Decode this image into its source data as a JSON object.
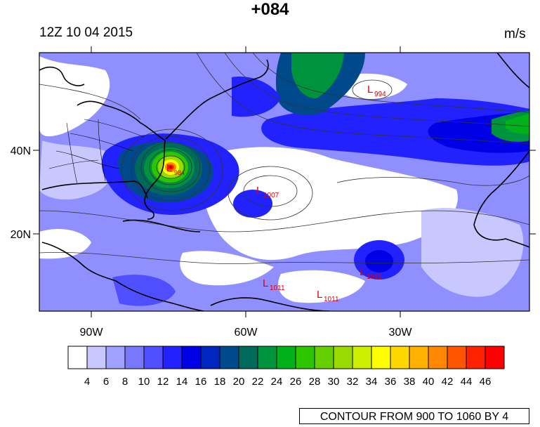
{
  "title": "+084",
  "valid_time": "12Z 10 04 2015",
  "units": "m/s",
  "footer": "CONTOUR FROM 900 TO 1060 BY 4",
  "map": {
    "x_ticks": [
      "90W",
      "60W",
      "30W"
    ],
    "y_ticks": [
      "40N",
      "20N"
    ],
    "lows": [
      {
        "label": "L",
        "value": "984"
      },
      {
        "label": "L",
        "value": "1007"
      },
      {
        "label": "L",
        "value": "994"
      },
      {
        "label": "L",
        "value": "1011"
      },
      {
        "label": "L",
        "value": "1011"
      },
      {
        "label": "L",
        "value": "1011"
      }
    ]
  },
  "colorbar": {
    "labels": [
      "4",
      "6",
      "8",
      "10",
      "12",
      "14",
      "16",
      "18",
      "20",
      "22",
      "24",
      "26",
      "28",
      "30",
      "32",
      "34",
      "36",
      "38",
      "40",
      "42",
      "44",
      "46"
    ],
    "colors": [
      "#ffffff",
      "#c8c8ff",
      "#a0a0ff",
      "#7878ff",
      "#4f4fff",
      "#2222ff",
      "#0000e6",
      "#0026c2",
      "#004a8c",
      "#006a5a",
      "#00933d",
      "#00b21a",
      "#2dc400",
      "#66cf00",
      "#99db00",
      "#ccee00",
      "#ffff00",
      "#ffd700",
      "#ffb000",
      "#ff8800",
      "#ff5500",
      "#ff2200",
      "#ff0000"
    ]
  }
}
